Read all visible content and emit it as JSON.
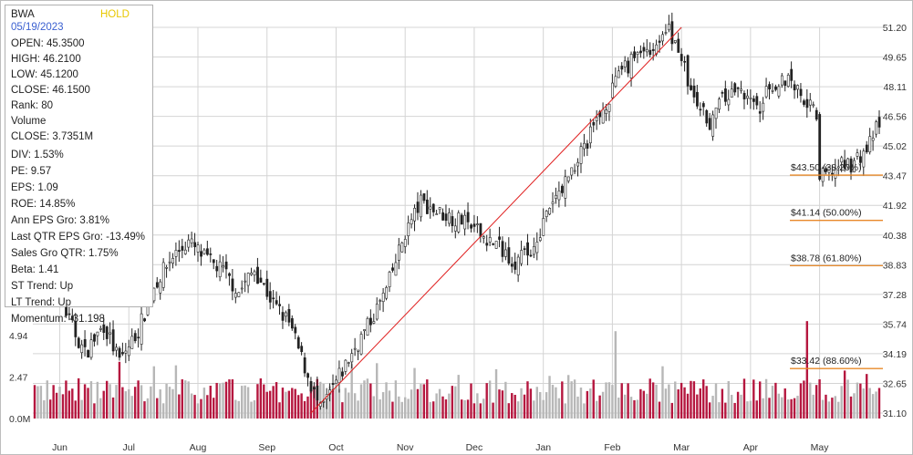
{
  "header": {
    "ticker": "BWA",
    "signal": "HOLD",
    "date": "05/19/2023"
  },
  "stats": [
    "OPEN: 45.3500",
    "HIGH: 46.2100",
    "LOW: 45.1200",
    "CLOSE: 46.1500",
    "Rank: 80",
    "Volume",
    "CLOSE: 3.7351M",
    "DIV: 1.53%",
    "PE: 9.57",
    "EPS: 1.09",
    "ROE: 14.85%",
    "Ann EPS Gro: 3.81%",
    "Last QTR EPS Gro: -13.49%",
    "Sales Gro QTR: 1.75%",
    "Beta: 1.41",
    "ST Trend: Up",
    "LT Trend: Up",
    "Momentum: -31.198"
  ],
  "colors": {
    "up": "#222222",
    "down": "#222222",
    "vol_up": "#b7b7b7",
    "vol_down": "#b5173f",
    "trend": "#e02020",
    "fib": "#e8892a",
    "grid": "#d4d4d4"
  },
  "chart_data": {
    "type": "candlestick",
    "x": [
      "Jun",
      "Jul",
      "Aug",
      "Sep",
      "Oct",
      "Nov",
      "Dec",
      "Jan",
      "Feb",
      "Mar",
      "Apr",
      "May"
    ],
    "y_ticks": [
      "51.20",
      "49.65",
      "48.11",
      "46.56",
      "45.02",
      "43.47",
      "41.92",
      "40.38",
      "38.83",
      "37.28",
      "35.74",
      "34.19",
      "32.65",
      "31.10"
    ],
    "volume_ticks": [
      "0.0M",
      "2.47",
      "4.94"
    ],
    "ylim": [
      31.1,
      51.2
    ],
    "price_path": [
      [
        0,
        37.5
      ],
      [
        5,
        38.5
      ],
      [
        11,
        35.9
      ],
      [
        16,
        34.2
      ],
      [
        22,
        35.7
      ],
      [
        27,
        33.8
      ],
      [
        33,
        35.4
      ],
      [
        38,
        37.7
      ],
      [
        44,
        39.3
      ],
      [
        49,
        40.0
      ],
      [
        54,
        39.2
      ],
      [
        60,
        38.5
      ],
      [
        65,
        37.4
      ],
      [
        70,
        38.6
      ],
      [
        76,
        36.8
      ],
      [
        81,
        35.8
      ],
      [
        86,
        33.5
      ],
      [
        91,
        31.2
      ],
      [
        97,
        33.0
      ],
      [
        102,
        34.5
      ],
      [
        107,
        35.9
      ],
      [
        112,
        37.5
      ],
      [
        114,
        38.5
      ],
      [
        118,
        40.5
      ],
      [
        123,
        42.1
      ],
      [
        128,
        41.6
      ],
      [
        133,
        41.3
      ],
      [
        138,
        40.9
      ],
      [
        143,
        40.3
      ],
      [
        148,
        39.8
      ],
      [
        153,
        39.0
      ],
      [
        158,
        39.5
      ],
      [
        162,
        41.0
      ],
      [
        167,
        42.6
      ],
      [
        172,
        44.1
      ],
      [
        177,
        45.6
      ],
      [
        182,
        47.3
      ],
      [
        187,
        48.8
      ],
      [
        192,
        49.9
      ],
      [
        197,
        50.2
      ],
      [
        202,
        51.0
      ],
      [
        205,
        50.2
      ],
      [
        210,
        47.3
      ],
      [
        215,
        46.3
      ],
      [
        220,
        47.6
      ],
      [
        225,
        48.0
      ],
      [
        230,
        46.8
      ],
      [
        235,
        48.3
      ],
      [
        240,
        48.6
      ],
      [
        245,
        47.6
      ],
      [
        249,
        46.6
      ],
      [
        250,
        43.3
      ],
      [
        255,
        43.9
      ],
      [
        260,
        44.1
      ],
      [
        265,
        44.8
      ],
      [
        268,
        45.9
      ]
    ],
    "volume_spikes": [
      [
        185,
        5.2
      ],
      [
        246,
        5.8
      ],
      [
        135,
        2.6
      ]
    ],
    "trendline": {
      "start": [
        88,
        31.1
      ],
      "end": [
        206,
        51.2
      ]
    },
    "fib_levels": [
      {
        "label": "$43.50 (38.20%)",
        "price": 43.5
      },
      {
        "label": "$41.14 (50.00%)",
        "price": 41.14
      },
      {
        "label": "$38.78 (61.80%)",
        "price": 38.78
      },
      {
        "label": "$33.42 (88.60%)",
        "price": 33.42
      }
    ]
  }
}
